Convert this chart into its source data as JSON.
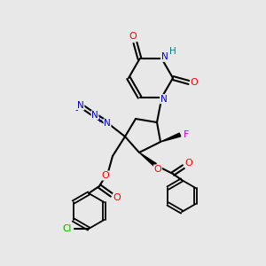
{
  "background_color": "#e8e8e8",
  "bond_color": "#000000",
  "atom_colors": {
    "O": "#ff0000",
    "N": "#0000cc",
    "F": "#cc00cc",
    "Cl": "#00aa00",
    "H": "#008080",
    "C": "#000000"
  }
}
